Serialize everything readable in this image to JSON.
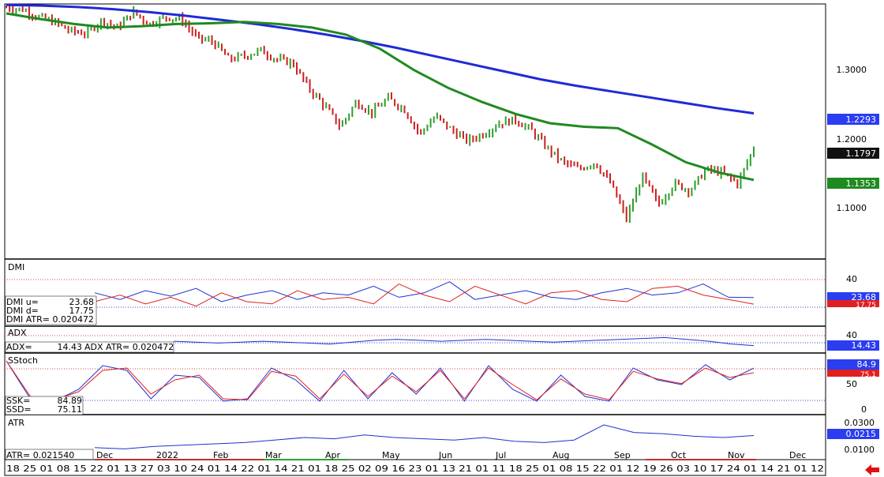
{
  "colors": {
    "price_up": "#2e9e2e",
    "price_down": "#cc2020",
    "ma_long": "#1f2ad6",
    "ma_short": "#1f8a1f",
    "red_line": "#e02020",
    "blue_line": "#2030d0",
    "border": "#000000"
  },
  "main": {
    "y_ticks": [
      "1.3000",
      "1.2000",
      "1.1000"
    ],
    "tags": {
      "ma_long": "1.2293",
      "last": "1.1797",
      "ma_short": "1.1353"
    }
  },
  "dmi": {
    "title": "DMI",
    "tick": "40",
    "readout": [
      "DMI u=",
      "23.68",
      "DMI d=",
      "17.75",
      "DMI ATR= 0.020472"
    ],
    "tags": {
      "up": "23.68",
      "down": "17.75"
    }
  },
  "adx": {
    "title": "ADX",
    "tick": "40",
    "readout": [
      "ADX=",
      "14.43",
      "ADX ATR= 0.020472"
    ],
    "tag": "14.43"
  },
  "sstoch": {
    "title": "SStoch",
    "ticks": [
      "50",
      "0"
    ],
    "readout": [
      "SSK=",
      "84.89",
      "SSD=",
      "75.11"
    ],
    "tags": {
      "k": "84.9",
      "d": "75.1"
    }
  },
  "atr": {
    "title": "ATR",
    "ticks": [
      "0.0300",
      "0.0100"
    ],
    "readout": "ATR= 0.021540",
    "tag": "0.0215"
  },
  "axis": {
    "months": [
      "Dec",
      "2022",
      "Feb",
      "Mar",
      "Apr",
      "May",
      "Jun",
      "Jul",
      "Aug",
      "Sep",
      "Oct",
      "Nov",
      "Dec"
    ],
    "days": "18 25 01 08 15 22 01 13 27 03 10 24 01 14 22 01 14 21 01 18 25 02 09 16 23 01 13 21 01 11 18 25 01 08 15 22 01 12 19 26 03 10 17 24 01 14 21 01 12"
  },
  "chart_data": {
    "type": "line",
    "title": "",
    "xlabel": "",
    "ylabel": "",
    "ylim": [
      1.03,
      1.38
    ],
    "last_price": 1.1797,
    "series": [
      {
        "values": [
          1.378,
          1.376,
          1.365,
          1.358,
          1.345,
          1.342,
          1.36,
          1.35,
          1.372,
          1.355,
          1.365,
          1.362,
          1.335,
          1.33,
          1.305,
          1.31,
          1.318,
          1.305,
          1.3,
          1.265,
          1.24,
          1.21,
          1.245,
          1.23,
          1.25,
          1.235,
          1.2,
          1.225,
          1.205,
          1.19,
          1.2,
          1.215,
          1.22,
          1.205,
          1.18,
          1.16,
          1.15,
          1.16,
          1.13,
          1.08,
          1.14,
          1.1,
          1.13,
          1.12,
          1.15,
          1.145,
          1.13,
          1.18
        ]
      },
      {
        "values": [
          1.382,
          1.381,
          1.379,
          1.376,
          1.372,
          1.367,
          1.361,
          1.355,
          1.348,
          1.34,
          1.331,
          1.321,
          1.31,
          1.299,
          1.288,
          1.277,
          1.268,
          1.26,
          1.252,
          1.244,
          1.236,
          1.229
        ]
      },
      {
        "values": [
          1.37,
          1.362,
          1.355,
          1.35,
          1.352,
          1.355,
          1.356,
          1.358,
          1.355,
          1.35,
          1.34,
          1.32,
          1.29,
          1.265,
          1.245,
          1.228,
          1.215,
          1.21,
          1.208,
          1.185,
          1.16,
          1.145,
          1.135
        ]
      }
    ],
    "dmi_up": [
      28,
      22,
      30,
      25,
      32,
      20,
      26,
      30,
      22,
      28,
      26,
      34,
      24,
      28,
      38,
      22,
      26,
      30,
      24,
      22,
      28,
      32,
      26,
      28,
      36,
      24,
      23.68
    ],
    "dmi_down": [
      20,
      26,
      18,
      24,
      16,
      28,
      20,
      18,
      30,
      22,
      24,
      18,
      36,
      26,
      20,
      34,
      26,
      18,
      28,
      30,
      22,
      20,
      32,
      34,
      26,
      22,
      17.75
    ],
    "adx": [
      24,
      22,
      20,
      22,
      24,
      22,
      20,
      18,
      22,
      26,
      28,
      26,
      24,
      26,
      28,
      26,
      24,
      22,
      24,
      26,
      28,
      30,
      32,
      28,
      24,
      18,
      14.43
    ],
    "sstoch_k": [
      100,
      20,
      15,
      40,
      90,
      80,
      20,
      70,
      65,
      15,
      20,
      85,
      60,
      15,
      80,
      20,
      75,
      30,
      85,
      15,
      90,
      40,
      15,
      70,
      25,
      15,
      85,
      60,
      50,
      92,
      60,
      84.89
    ],
    "sstoch_d": [
      100,
      25,
      18,
      35,
      80,
      85,
      30,
      60,
      70,
      20,
      18,
      78,
      68,
      20,
      72,
      25,
      68,
      35,
      80,
      20,
      85,
      50,
      18,
      62,
      30,
      18,
      78,
      62,
      52,
      85,
      65,
      75.11
    ],
    "atr": [
      0.012,
      0.011,
      0.013,
      0.014,
      0.015,
      0.016,
      0.018,
      0.02,
      0.019,
      0.022,
      0.02,
      0.019,
      0.018,
      0.02,
      0.017,
      0.016,
      0.018,
      0.03,
      0.024,
      0.023,
      0.021,
      0.02,
      0.02154
    ]
  }
}
